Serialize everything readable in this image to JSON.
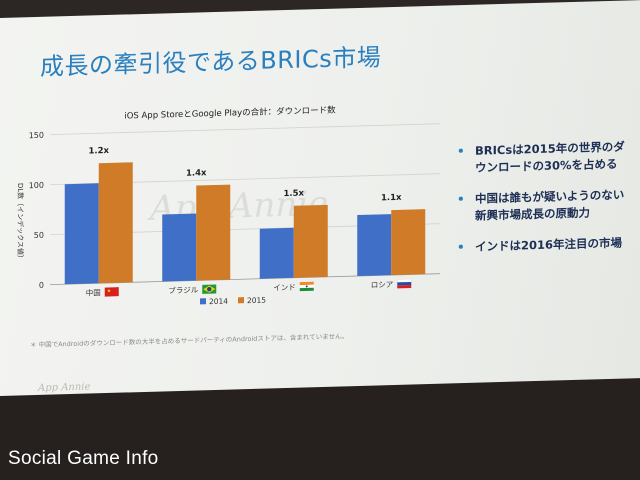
{
  "slide": {
    "title": "成長の牽引役であるBRICs市場",
    "watermark": "App Annie",
    "footnote": "＊ 中国でAndroidのダウンロード数の大半を占めるサードパーティのAndroidストアは、含まれていません。",
    "brand_logo": "App Annie"
  },
  "bullets": [
    "BRICsは2015年の世界のダウンロードの30%を占める",
    "中国は誰もが疑いようのない新興市場成長の原動力",
    "インドは2016年注目の市場"
  ],
  "site_watermark": "Social Game Info",
  "chart_data": {
    "type": "bar",
    "title": "iOS App StoreとGoogle Playの合計：ダウンロード数",
    "ylabel": "DL数（インデックス値）",
    "xlabel": "",
    "ylim": [
      0,
      150
    ],
    "yticks": [
      0,
      50,
      100,
      150
    ],
    "grid": true,
    "legend_position": "bottom",
    "categories": [
      "中国",
      "ブラジル",
      "インド",
      "ロシア"
    ],
    "flags": [
      "china",
      "brazil",
      "india",
      "russia"
    ],
    "series": [
      {
        "name": "2014",
        "color": "#3f6fc6",
        "values": [
          100,
          67,
          50,
          61
        ]
      },
      {
        "name": "2015",
        "color": "#cf7b27",
        "values": [
          120,
          95,
          72,
          65
        ]
      }
    ],
    "annotations": [
      "1.2x",
      "1.4x",
      "1.5x",
      "1.1x"
    ]
  }
}
